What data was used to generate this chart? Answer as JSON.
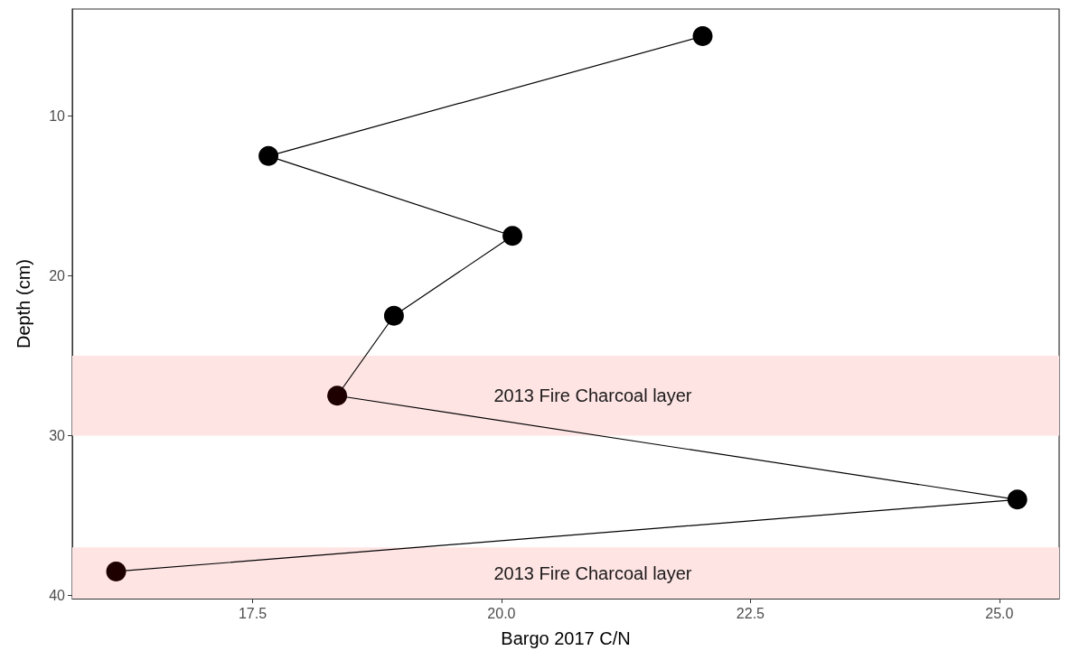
{
  "chart_data": {
    "type": "line",
    "xlabel": "Bargo 2017 C/N",
    "ylabel": "Depth (cm)",
    "x": [
      22.02,
      17.66,
      20.11,
      18.92,
      18.35,
      25.18,
      16.13
    ],
    "values": [
      5,
      12.5,
      17.5,
      22.5,
      27.5,
      34,
      38.5
    ],
    "color": "#000000",
    "colors": [
      "#000000",
      "#000000",
      "#000000",
      "#000000",
      "#1f0000",
      "#000000",
      "#1f0000"
    ],
    "marker": "circle",
    "line_style": "solid",
    "grid": false,
    "xlim": [
      15.69,
      25.6
    ],
    "xticks": [
      {
        "value": 17.5,
        "label": "17.5"
      },
      {
        "value": 20,
        "label": "20.0"
      },
      {
        "value": 22.5,
        "label": "22.5"
      },
      {
        "value": 25,
        "label": "25.0"
      }
    ],
    "ylim": [
      40.2,
      3.3
    ],
    "yticks": [
      10,
      20,
      30,
      40
    ],
    "bands": [
      {
        "axis": "y",
        "from": 25,
        "to": 30,
        "color": "#ffe4e4",
        "label": "2013 Fire Charcoal layer"
      },
      {
        "axis": "y",
        "from": 37,
        "to": 40.2,
        "color": "#ffe4e4",
        "label": "2013 Fire Charcoal layer"
      }
    ]
  }
}
